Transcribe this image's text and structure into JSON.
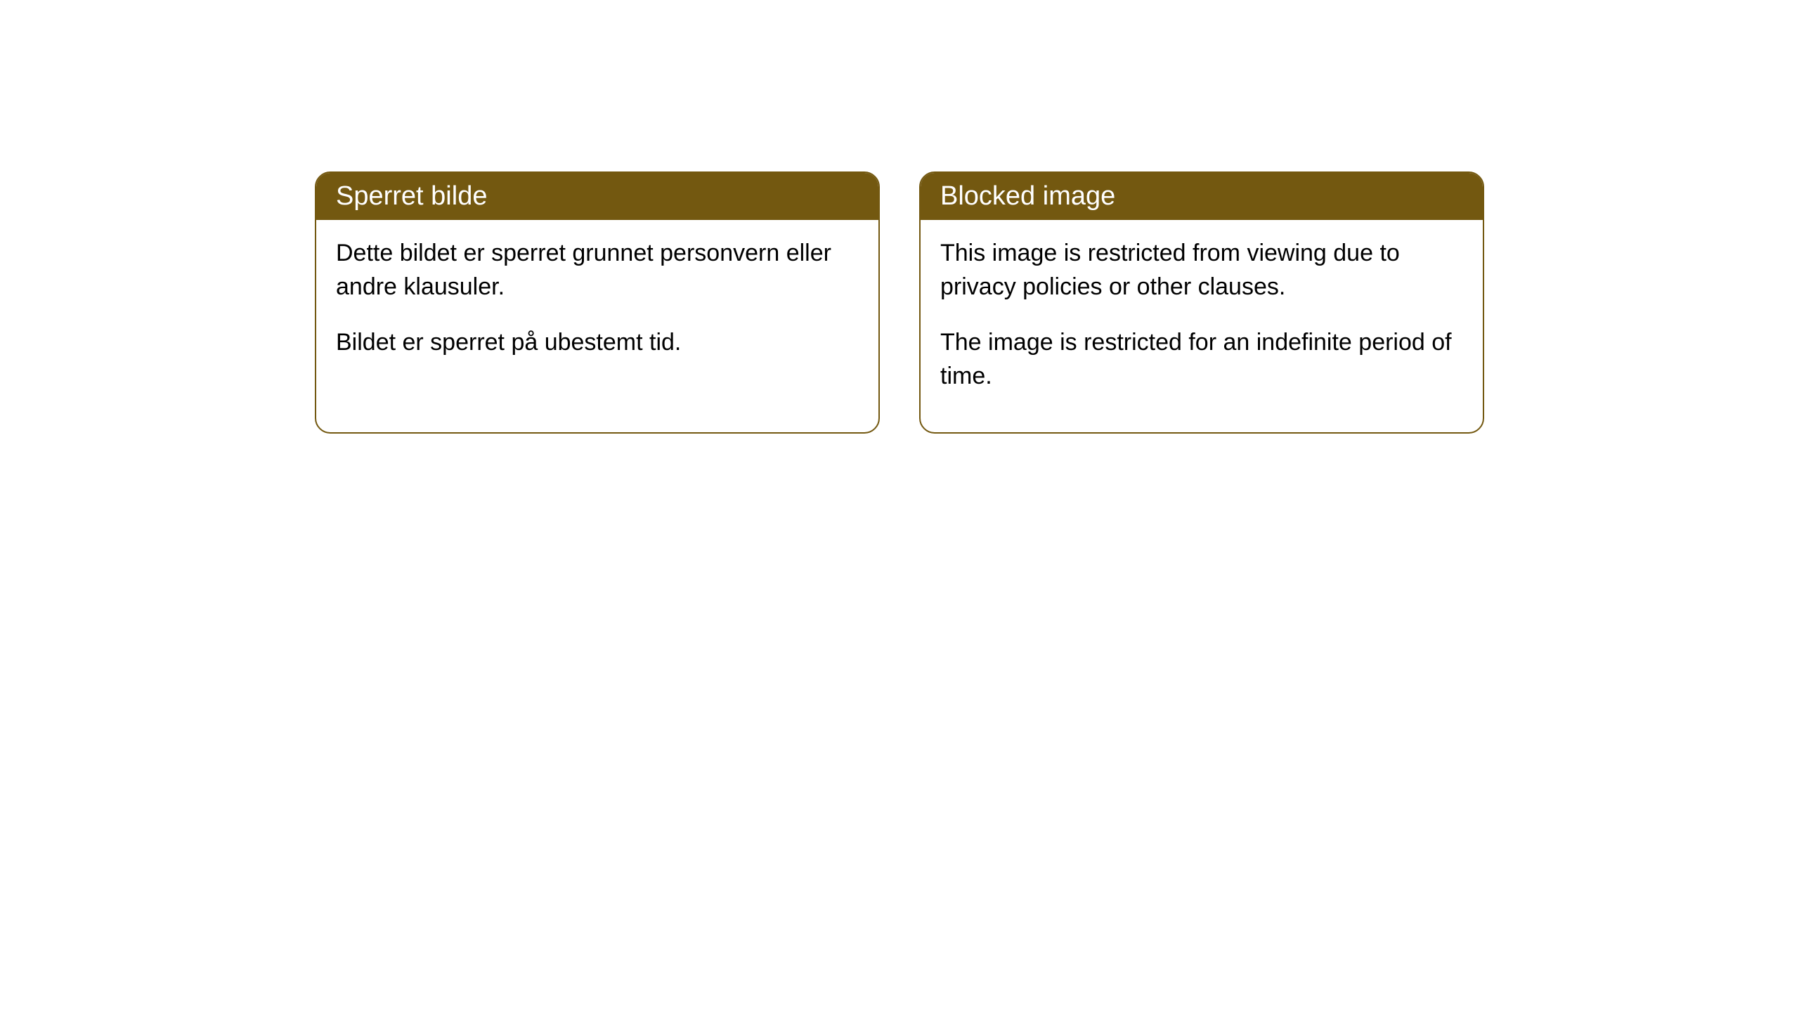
{
  "cards": [
    {
      "title": "Sperret bilde",
      "paragraph1": "Dette bildet er sperret grunnet personvern eller andre klausuler.",
      "paragraph2": "Bildet er sperret på ubestemt tid."
    },
    {
      "title": "Blocked image",
      "paragraph1": "This image is restricted from viewing due to privacy policies or other clauses.",
      "paragraph2": "The image is restricted for an indefinite period of time."
    }
  ],
  "styling": {
    "header_background_color": "#735810",
    "header_text_color": "#ffffff",
    "border_color": "#735810",
    "body_background_color": "#ffffff",
    "body_text_color": "#000000",
    "border_radius": 22,
    "header_fontsize": 38,
    "body_fontsize": 34
  }
}
